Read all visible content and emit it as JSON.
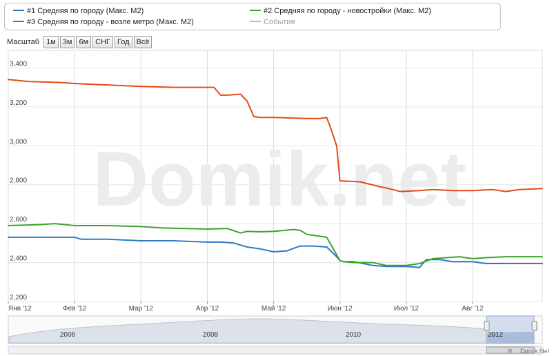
{
  "legend": {
    "items": [
      {
        "label": "#1 Средняя по городу (Макс. М2)",
        "color": "#2c7bc6"
      },
      {
        "label": "#2 Средняя по городу - новостройки (Макс. М2)",
        "color": "#3aa52b"
      },
      {
        "label": "#3 Средняя по городу - возле метро (Макс. М2)",
        "color": "#e24b16"
      },
      {
        "label": "События",
        "color": "#bbbbbb"
      }
    ]
  },
  "zoom": {
    "label": "Масштаб",
    "buttons": [
      "1м",
      "3м",
      "6м",
      "СНГ",
      "Год",
      "Всё"
    ]
  },
  "watermark": "Domik.net",
  "footer": "Domik.Net",
  "navigator": {
    "years": [
      "2006",
      "2008",
      "2010",
      "2012"
    ],
    "handle_label": "III"
  },
  "chart_data": {
    "type": "line",
    "x_ticks": [
      "Янв '12",
      "Фев '12",
      "Мар '12",
      "Апр '12",
      "Май '12",
      "Июн '12",
      "Июл '12",
      "Авг '12"
    ],
    "y_ticks": [
      2200,
      2400,
      2600,
      2800,
      3000,
      3200,
      3400
    ],
    "y_tick_labels": [
      "2,200",
      "2,400",
      "2,600",
      "2,800",
      "3,000",
      "3,200",
      "3,400"
    ],
    "xlim": [
      0,
      8.05
    ],
    "ylim": [
      2200,
      3490
    ],
    "grid": true,
    "series": [
      {
        "name": "#1 Средняя по городу (Макс. М2)",
        "color": "#2c7bc6",
        "x": [
          0,
          0.5,
          1.0,
          1.1,
          1.5,
          2.0,
          2.5,
          3.0,
          3.2,
          3.4,
          3.6,
          3.8,
          4.0,
          4.2,
          4.4,
          4.6,
          4.8,
          4.95,
          5.0,
          5.05,
          5.2,
          5.5,
          5.7,
          6.0,
          6.2,
          6.3,
          6.5,
          6.7,
          7.0,
          7.2,
          7.5,
          8.0,
          8.05
        ],
        "y": [
          2530,
          2530,
          2530,
          2520,
          2520,
          2512,
          2512,
          2505,
          2505,
          2500,
          2480,
          2470,
          2455,
          2460,
          2485,
          2485,
          2480,
          2430,
          2410,
          2405,
          2405,
          2385,
          2380,
          2380,
          2375,
          2415,
          2415,
          2405,
          2405,
          2395,
          2395,
          2395,
          2395
        ]
      },
      {
        "name": "#2 Средняя по городу - новостройки (Макс. М2)",
        "color": "#3aa52b",
        "x": [
          0,
          0.5,
          0.7,
          1.0,
          1.5,
          2.0,
          2.3,
          3.0,
          3.3,
          3.5,
          3.6,
          3.8,
          4.0,
          4.3,
          4.4,
          4.5,
          4.8,
          4.95,
          5.0,
          5.05,
          5.2,
          5.5,
          5.7,
          6.0,
          6.2,
          6.4,
          6.6,
          6.8,
          7.0,
          7.2,
          7.5,
          8.0,
          8.05
        ],
        "y": [
          2590,
          2595,
          2600,
          2590,
          2590,
          2585,
          2578,
          2572,
          2575,
          2552,
          2560,
          2558,
          2560,
          2570,
          2565,
          2545,
          2530,
          2440,
          2410,
          2405,
          2400,
          2400,
          2385,
          2385,
          2395,
          2420,
          2425,
          2430,
          2420,
          2425,
          2430,
          2430,
          2430
        ]
      },
      {
        "name": "#3 Средняя по городу - возле метро (Макс. М2)",
        "color": "#e24b16",
        "x": [
          0,
          0.3,
          0.8,
          1.0,
          1.3,
          2.0,
          2.5,
          3.0,
          3.1,
          3.2,
          3.3,
          3.5,
          3.6,
          3.7,
          3.8,
          4.0,
          4.5,
          4.7,
          4.8,
          4.85,
          4.95,
          5.0,
          5.3,
          5.6,
          5.8,
          5.9,
          6.2,
          6.4,
          6.7,
          7.0,
          7.3,
          7.5,
          7.7,
          8.05
        ],
        "y": [
          3340,
          3330,
          3325,
          3320,
          3315,
          3305,
          3300,
          3300,
          3300,
          3260,
          3260,
          3265,
          3230,
          3150,
          3145,
          3145,
          3140,
          3140,
          3145,
          3100,
          3000,
          2820,
          2815,
          2790,
          2775,
          2765,
          2770,
          2775,
          2770,
          2770,
          2775,
          2765,
          2775,
          2780
        ]
      }
    ]
  }
}
